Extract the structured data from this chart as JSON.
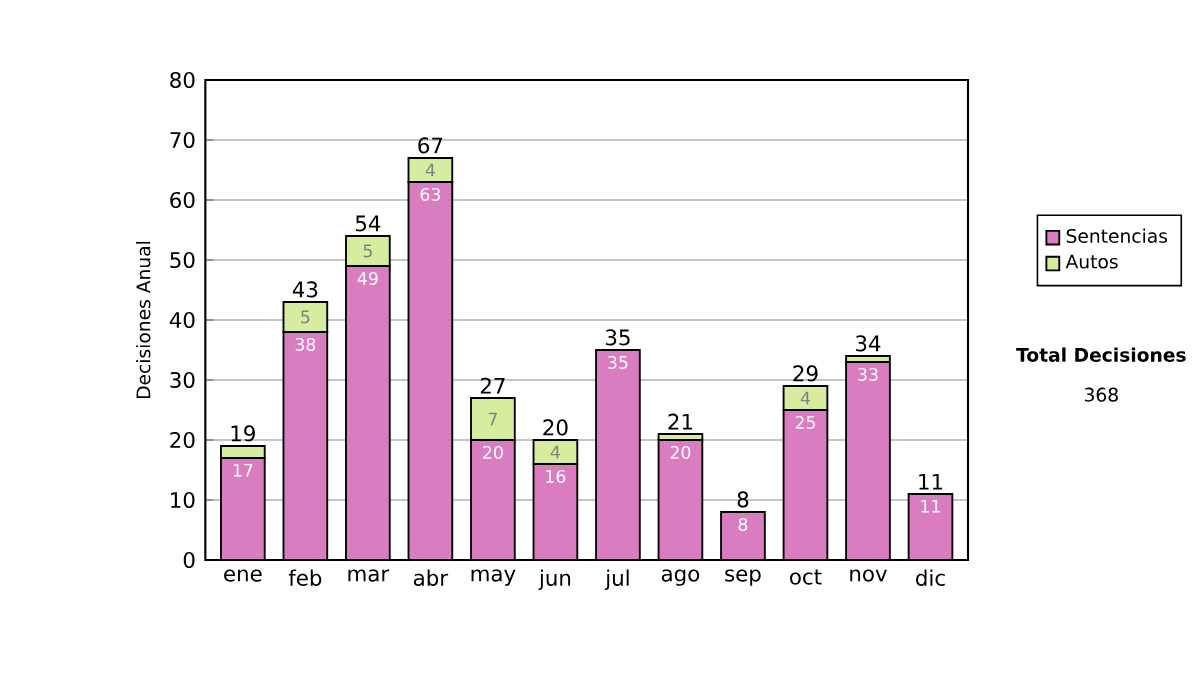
{
  "chart_data": {
    "type": "bar",
    "stacked": true,
    "ylabel": "Decisiones Anual",
    "categories": [
      "ene",
      "feb",
      "mar",
      "abr",
      "may",
      "jun",
      "jul",
      "ago",
      "sep",
      "oct",
      "nov",
      "dic"
    ],
    "series": [
      {
        "name": "Sentencias",
        "color": "#d97cc0",
        "values": [
          17,
          38,
          49,
          63,
          20,
          16,
          35,
          20,
          8,
          25,
          33,
          11
        ],
        "value_labels": [
          "17",
          "38",
          "49",
          "63",
          "20",
          "16",
          "35",
          "20",
          "8",
          "25",
          "33",
          "11"
        ]
      },
      {
        "name": "Autos",
        "color": "#d8eca0",
        "values": [
          2,
          5,
          5,
          4,
          7,
          4,
          0,
          1,
          0,
          4,
          1,
          0
        ],
        "value_labels": [
          null,
          "5",
          "5",
          "4",
          "7",
          "4",
          null,
          null,
          null,
          "4",
          null,
          null
        ]
      }
    ],
    "totals": [
      "19",
      "43",
      "54",
      "67",
      "27",
      "20",
      "35",
      "21",
      "8",
      "29",
      "34",
      "11"
    ],
    "ylim": [
      0,
      80
    ],
    "yticks": [
      0,
      10,
      20,
      30,
      40,
      50,
      60,
      70,
      80
    ],
    "grid": "y",
    "legend": "right",
    "annotations": [
      "Total Decisiones",
      "368"
    ]
  }
}
